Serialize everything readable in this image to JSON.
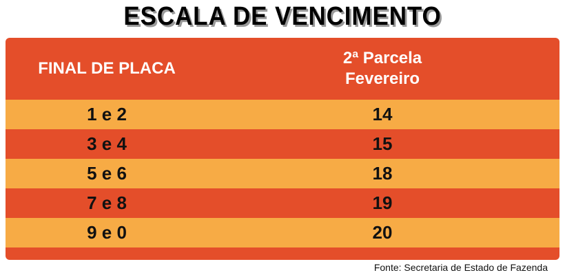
{
  "title": "ESCALA DE VENCIMENTO",
  "table": {
    "header": [
      "FINAL DE PLACA",
      [
        "2ª Parcela",
        "Fevereiro"
      ]
    ],
    "rows": [
      [
        "1 e 2",
        14
      ],
      [
        "3 e 4",
        15
      ],
      [
        "5 e 6",
        18
      ],
      [
        "7 e 8",
        19
      ],
      [
        "9 e 0",
        20
      ]
    ]
  },
  "source": "Fonte: Secretaria de Estado de Fazenda"
}
